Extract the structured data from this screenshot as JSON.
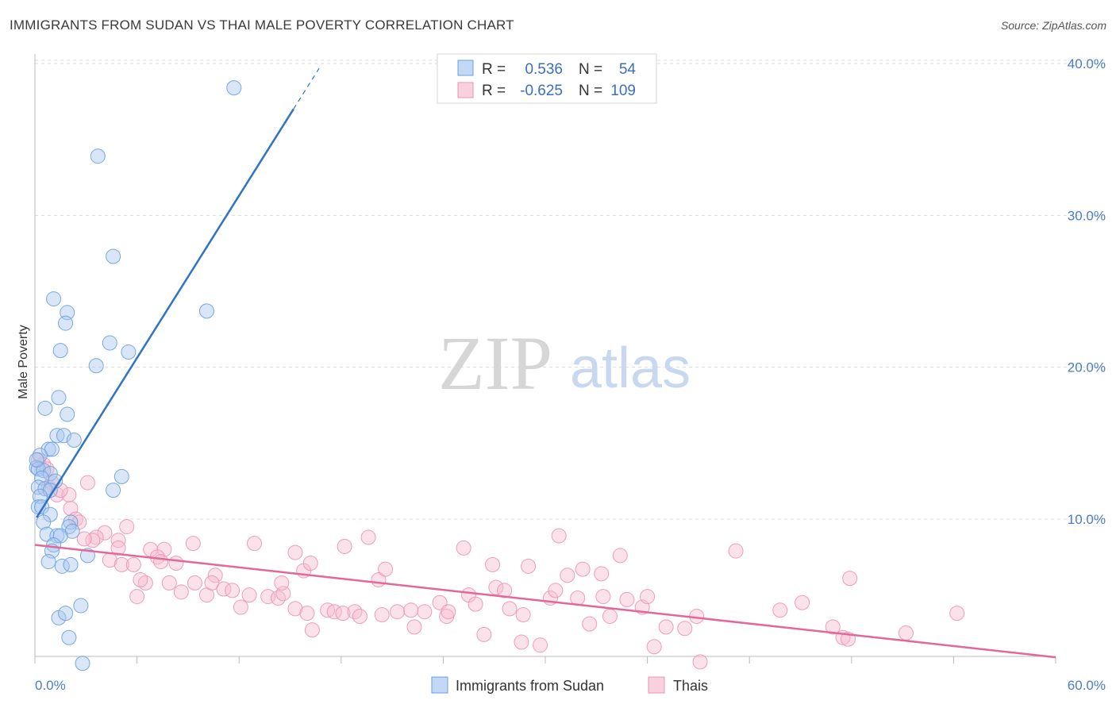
{
  "title": "IMMIGRANTS FROM SUDAN VS THAI MALE POVERTY CORRELATION CHART",
  "source": "Source: ZipAtlas.com",
  "watermark": {
    "zip": "ZIP",
    "atlas": "atlas"
  },
  "legend": {
    "r_label": "R =",
    "n_label": "N =",
    "rows": [
      {
        "r": "0.536",
        "n": "54"
      },
      {
        "r": "-0.625",
        "n": "109"
      }
    ]
  },
  "bottom_legend": [
    "Immigrants from Sudan",
    "Thais"
  ],
  "colors": {
    "sudan_fill": "#a9c8ef",
    "sudan_stroke": "#6d9fdc",
    "sudan_line": "#2f73c6",
    "thai_fill": "#f6bdd0",
    "thai_stroke": "#ec93b2",
    "thai_line": "#e2689a",
    "axis_text": "#4a7cc9",
    "grid": "#dcdcdc"
  },
  "chart_data": {
    "type": "scatter",
    "title": "IMMIGRANTS FROM SUDAN VS THAI MALE POVERTY CORRELATION CHART",
    "ylabel": "Male Poverty",
    "xlabel": "",
    "x_unit": "%",
    "xlim": [
      0,
      60
    ],
    "ylim": [
      0,
      42
    ],
    "y_ticks": [
      10,
      20,
      30,
      40
    ],
    "y_tick_labels": [
      "10.0%",
      "20.0%",
      "30.0%",
      "40.0%"
    ],
    "x_tick_labels": [
      "0.0%",
      "60.0%"
    ],
    "grid": "horizontal dashed",
    "series": [
      {
        "name": "Immigrants from Sudan",
        "r": 0.536,
        "n": 54,
        "trend": {
          "x0": 0.1,
          "y0": 10.1,
          "x1": 15.2,
          "y1": 37.0,
          "dashed_to_x": 16.7
        },
        "points": [
          [
            11.7,
            38.4
          ],
          [
            3.7,
            33.9
          ],
          [
            4.6,
            27.3
          ],
          [
            10.1,
            23.7
          ],
          [
            1.1,
            24.5
          ],
          [
            1.9,
            23.6
          ],
          [
            1.8,
            22.9
          ],
          [
            1.5,
            21.1
          ],
          [
            4.4,
            21.6
          ],
          [
            5.5,
            21.0
          ],
          [
            3.6,
            20.1
          ],
          [
            1.4,
            18.0
          ],
          [
            0.6,
            17.3
          ],
          [
            1.9,
            16.9
          ],
          [
            1.3,
            15.5
          ],
          [
            1.7,
            15.5
          ],
          [
            2.3,
            15.2
          ],
          [
            0.8,
            14.6
          ],
          [
            1.0,
            14.6
          ],
          [
            0.3,
            14.2
          ],
          [
            0.1,
            13.4
          ],
          [
            0.2,
            13.3
          ],
          [
            0.5,
            13.2
          ],
          [
            0.9,
            13.0
          ],
          [
            0.4,
            12.7
          ],
          [
            1.2,
            12.5
          ],
          [
            0.2,
            12.1
          ],
          [
            0.6,
            12.0
          ],
          [
            0.9,
            11.9
          ],
          [
            0.3,
            11.5
          ],
          [
            5.1,
            12.8
          ],
          [
            4.6,
            11.9
          ],
          [
            0.2,
            10.8
          ],
          [
            0.4,
            10.8
          ],
          [
            0.9,
            10.3
          ],
          [
            0.5,
            9.8
          ],
          [
            2.1,
            9.8
          ],
          [
            2.0,
            9.5
          ],
          [
            2.2,
            9.2
          ],
          [
            0.7,
            9.0
          ],
          [
            1.3,
            8.9
          ],
          [
            1.5,
            8.9
          ],
          [
            1.1,
            8.3
          ],
          [
            1.0,
            7.9
          ],
          [
            3.1,
            7.6
          ],
          [
            0.8,
            7.2
          ],
          [
            1.6,
            6.9
          ],
          [
            2.1,
            7.0
          ],
          [
            1.4,
            3.5
          ],
          [
            1.8,
            3.8
          ],
          [
            2.7,
            4.3
          ],
          [
            2.0,
            2.2
          ],
          [
            2.8,
            0.5
          ],
          [
            0.1,
            13.9
          ]
        ]
      },
      {
        "name": "Thais",
        "r": -0.625,
        "n": 109,
        "trend": {
          "x0": 0,
          "y0": 8.3,
          "x1": 60,
          "y1": 0.9
        },
        "points": [
          [
            0.2,
            13.9
          ],
          [
            0.5,
            13.6
          ],
          [
            0.8,
            12.1
          ],
          [
            1.0,
            12.4
          ],
          [
            1.3,
            11.6
          ],
          [
            2.0,
            11.6
          ],
          [
            3.1,
            12.4
          ],
          [
            2.1,
            10.7
          ],
          [
            2.4,
            10.0
          ],
          [
            2.6,
            9.8
          ],
          [
            4.1,
            9.1
          ],
          [
            5.4,
            9.5
          ],
          [
            3.6,
            8.8
          ],
          [
            4.9,
            8.6
          ],
          [
            3.4,
            8.6
          ],
          [
            6.8,
            8.0
          ],
          [
            7.6,
            8.0
          ],
          [
            9.3,
            8.4
          ],
          [
            7.2,
            7.5
          ],
          [
            4.4,
            7.3
          ],
          [
            5.1,
            7.0
          ],
          [
            5.8,
            7.0
          ],
          [
            7.4,
            7.2
          ],
          [
            8.3,
            7.1
          ],
          [
            10.6,
            6.3
          ],
          [
            6.5,
            5.8
          ],
          [
            6.2,
            6.0
          ],
          [
            7.9,
            5.8
          ],
          [
            9.4,
            5.8
          ],
          [
            8.6,
            5.2
          ],
          [
            10.1,
            5.0
          ],
          [
            10.4,
            5.8
          ],
          [
            11.1,
            5.4
          ],
          [
            11.6,
            5.3
          ],
          [
            12.6,
            5.0
          ],
          [
            12.1,
            4.2
          ],
          [
            13.7,
            4.9
          ],
          [
            14.3,
            4.8
          ],
          [
            14.6,
            5.1
          ],
          [
            14.5,
            5.8
          ],
          [
            15.3,
            4.1
          ],
          [
            12.9,
            8.4
          ],
          [
            15.3,
            7.8
          ],
          [
            15.8,
            6.6
          ],
          [
            16.2,
            7.1
          ],
          [
            16.0,
            3.8
          ],
          [
            16.3,
            2.7
          ],
          [
            17.2,
            4.0
          ],
          [
            17.6,
            3.9
          ],
          [
            18.1,
            3.8
          ],
          [
            18.2,
            8.2
          ],
          [
            18.8,
            3.9
          ],
          [
            19.1,
            3.6
          ],
          [
            19.6,
            8.8
          ],
          [
            20.2,
            6.0
          ],
          [
            20.4,
            3.7
          ],
          [
            20.6,
            6.7
          ],
          [
            21.3,
            3.9
          ],
          [
            22.1,
            4.0
          ],
          [
            22.3,
            2.9
          ],
          [
            22.9,
            3.9
          ],
          [
            23.8,
            4.5
          ],
          [
            24.2,
            3.6
          ],
          [
            24.3,
            3.9
          ],
          [
            25.2,
            8.1
          ],
          [
            25.5,
            5.0
          ],
          [
            25.9,
            4.4
          ],
          [
            26.4,
            2.4
          ],
          [
            26.9,
            7.0
          ],
          [
            27.1,
            5.5
          ],
          [
            27.6,
            5.3
          ],
          [
            27.9,
            4.1
          ],
          [
            28.7,
            3.7
          ],
          [
            28.6,
            1.9
          ],
          [
            29.0,
            6.9
          ],
          [
            29.7,
            1.7
          ],
          [
            30.3,
            4.8
          ],
          [
            30.6,
            5.3
          ],
          [
            30.8,
            8.9
          ],
          [
            31.3,
            6.3
          ],
          [
            31.9,
            4.8
          ],
          [
            32.2,
            6.7
          ],
          [
            32.6,
            3.1
          ],
          [
            33.3,
            6.4
          ],
          [
            33.4,
            4.9
          ],
          [
            33.8,
            3.6
          ],
          [
            34.4,
            7.6
          ],
          [
            34.8,
            4.7
          ],
          [
            35.7,
            4.2
          ],
          [
            36.0,
            4.9
          ],
          [
            36.4,
            1.6
          ],
          [
            37.1,
            2.9
          ],
          [
            38.2,
            2.8
          ],
          [
            38.9,
            3.6
          ],
          [
            39.1,
            0.6
          ],
          [
            41.2,
            7.9
          ],
          [
            43.8,
            4.0
          ],
          [
            45.1,
            4.5
          ],
          [
            46.9,
            2.9
          ],
          [
            47.5,
            2.2
          ],
          [
            47.8,
            2.1
          ],
          [
            47.9,
            6.1
          ],
          [
            51.2,
            2.5
          ],
          [
            54.2,
            3.8
          ],
          [
            0.7,
            13.3
          ],
          [
            1.5,
            11.9
          ],
          [
            4.9,
            8.1
          ],
          [
            2.9,
            8.7
          ],
          [
            6.0,
            4.9
          ]
        ]
      }
    ]
  }
}
